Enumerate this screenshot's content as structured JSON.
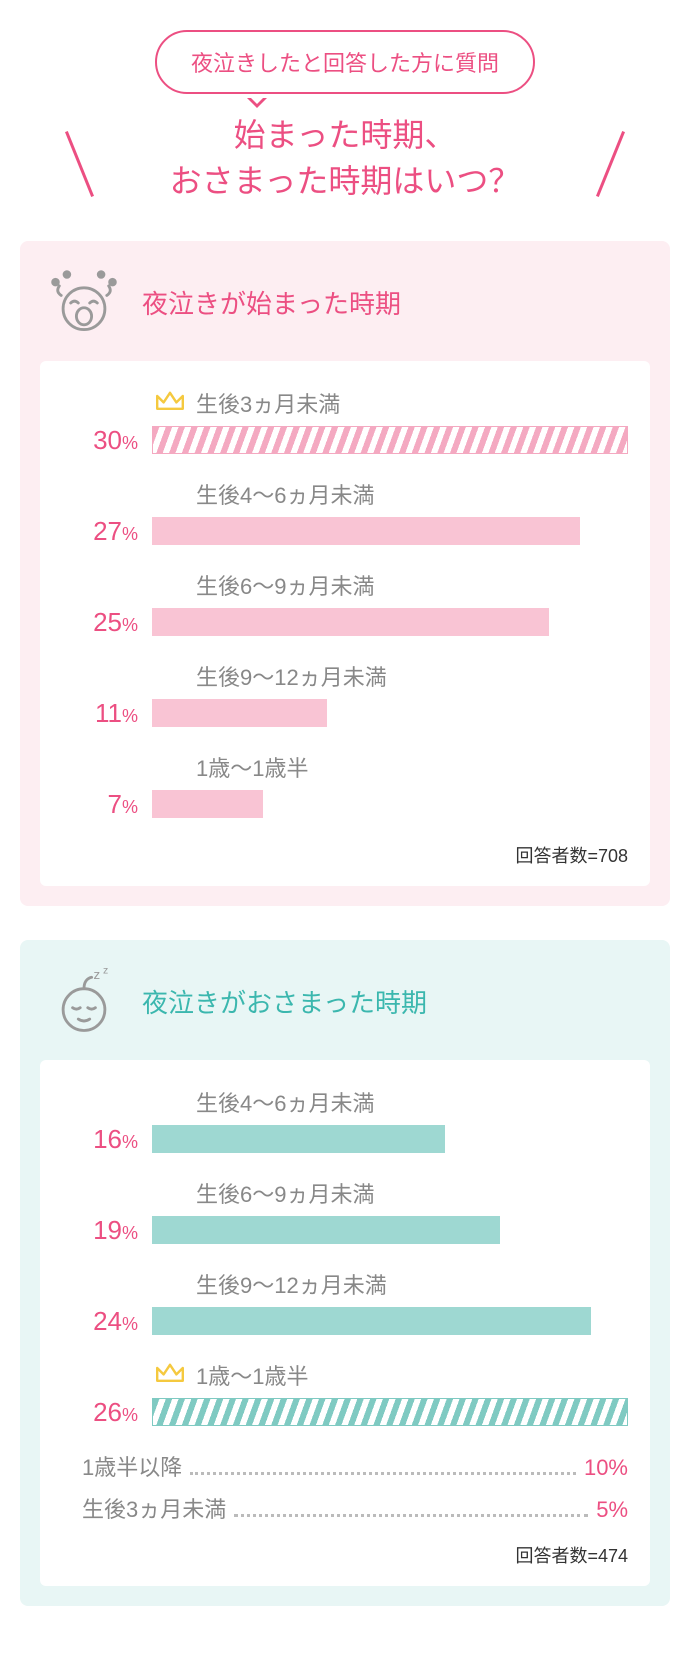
{
  "colors": {
    "pink": "#ec4f82",
    "pink_soft": "#f9c4d4",
    "pink_bg": "#fdeef2",
    "teal": "#3bb7ae",
    "teal_soft": "#9ed8d2",
    "teal_bg": "#e8f6f5",
    "gray_text": "#888888",
    "crown": "#f5c93f"
  },
  "bubble": {
    "text": "夜泣きしたと回答した方に質問"
  },
  "headline": {
    "line1": "始まった時期、",
    "line2": "おさまった時期はいつ？"
  },
  "panel1": {
    "title": "夜泣きが始まった時期",
    "bg": "#fdeef2",
    "title_color": "#ec4f82",
    "bar_color": "#f9c4d4",
    "hatch_color": "#f4a9c1",
    "pct_color": "#ec4f82",
    "full_pct": 30,
    "items": [
      {
        "label": "生後3ヵ月未満",
        "pct": 30,
        "crown": true,
        "hatched": true
      },
      {
        "label": "生後4〜6ヵ月未満",
        "pct": 27,
        "crown": false,
        "hatched": false
      },
      {
        "label": "生後6〜9ヵ月未満",
        "pct": 25,
        "crown": false,
        "hatched": false
      },
      {
        "label": "生後9〜12ヵ月未満",
        "pct": 11,
        "crown": false,
        "hatched": false
      },
      {
        "label": "1歳〜1歳半",
        "pct": 7,
        "crown": false,
        "hatched": false
      }
    ],
    "respondents_label": "回答者数=708"
  },
  "panel2": {
    "title": "夜泣きがおさまった時期",
    "bg": "#e8f6f5",
    "title_color": "#3bb7ae",
    "bar_color": "#9ed8d2",
    "hatch_color": "#7fcac2",
    "pct_color": "#ec4f82",
    "full_pct": 26,
    "items": [
      {
        "label": "生後4〜6ヵ月未満",
        "pct": 16,
        "crown": false,
        "hatched": false
      },
      {
        "label": "生後6〜9ヵ月未満",
        "pct": 19,
        "crown": false,
        "hatched": false
      },
      {
        "label": "生後9〜12ヵ月未満",
        "pct": 24,
        "crown": false,
        "hatched": false
      },
      {
        "label": "1歳〜1歳半",
        "pct": 26,
        "crown": true,
        "hatched": true
      }
    ],
    "extras": [
      {
        "label": "1歳半以降",
        "pct": "10%"
      },
      {
        "label": "生後3ヵ月未満",
        "pct": "5%"
      }
    ],
    "respondents_label": "回答者数=474"
  }
}
